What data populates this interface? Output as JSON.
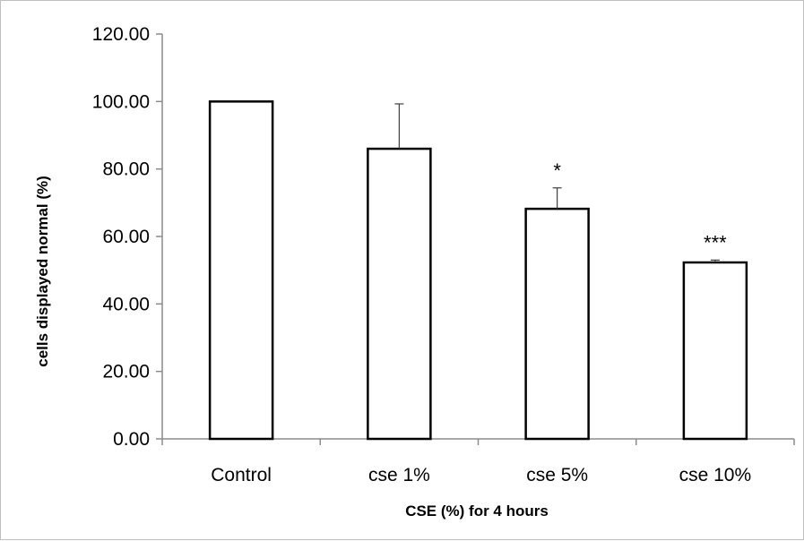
{
  "chart_data": {
    "type": "bar",
    "title": "",
    "xlabel": "CSE (%) for 4 hours",
    "ylabel": "cells displayed normal (%)",
    "ylim": [
      0,
      120
    ],
    "yticks": [
      "0.00",
      "20.00",
      "40.00",
      "60.00",
      "80.00",
      "100.00",
      "120.00"
    ],
    "categories": [
      "Control",
      "cse 1%",
      "cse 5%",
      "cse 10%"
    ],
    "values": [
      100.0,
      86.0,
      68.2,
      52.3
    ],
    "error_plus": [
      0.0,
      13.3,
      6.2,
      0.7
    ],
    "significance": [
      "",
      "",
      "*",
      "***"
    ],
    "grid": false,
    "legend": "none",
    "bar_fill": "#ffffff",
    "bar_edge": "#000000",
    "axis_color": "#8c8c8c"
  }
}
